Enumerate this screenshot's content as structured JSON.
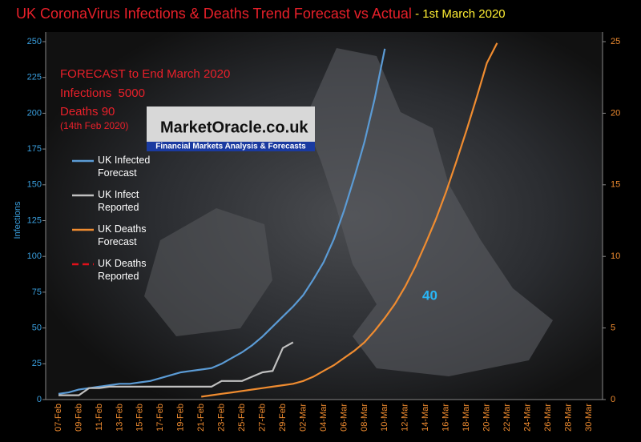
{
  "chart_data": {
    "type": "line",
    "title": "UK CoronaVirus Infections & Deaths Trend Forecast vs Actual",
    "subtitle": " - 1st March 2020",
    "ylabel": "Infections",
    "annotations": [
      "FORECAST to End March 2020",
      "Infections  5000",
      "Deaths 90",
      "(14th Feb 2020)",
      "40"
    ],
    "logo": {
      "name": "MarketOracle.co.uk",
      "tagline": "Financial Markets Analysis & Forecasts"
    },
    "categories": [
      "07-Feb",
      null,
      "09-Feb",
      null,
      "11-Feb",
      null,
      "13-Feb",
      null,
      "15-Feb",
      null,
      "17-Feb",
      null,
      "19-Feb",
      null,
      "21-Feb",
      null,
      "23-Feb",
      null,
      "25-Feb",
      null,
      "27-Feb",
      null,
      "29-Feb",
      null,
      "02-Mar",
      null,
      "04-Mar",
      null,
      "06-Mar",
      null,
      "08-Mar",
      null,
      "10-Mar",
      null,
      "12-Mar",
      null,
      "14-Mar",
      null,
      "16-Mar",
      null,
      "18-Mar",
      null,
      "20-Mar",
      null,
      "22-Mar",
      null,
      "24-Mar",
      null,
      "26-Mar",
      null,
      "28-Mar",
      null,
      "30-Mar"
    ],
    "series": [
      {
        "name": "UK Infected Forecast",
        "color": "#5b9bd5",
        "values": [
          4,
          5,
          7,
          8,
          9,
          10,
          11,
          11,
          12,
          13,
          15,
          17,
          19,
          20,
          21,
          22,
          25,
          29,
          33,
          38,
          44,
          51,
          58,
          65,
          73,
          84,
          96,
          112,
          132,
          155,
          180,
          210,
          245,
          null,
          null,
          null,
          null,
          null,
          null,
          null,
          null,
          null,
          null,
          null,
          null,
          null,
          null,
          null,
          null,
          null,
          null,
          null,
          null
        ]
      },
      {
        "name": "UK Infect Reported",
        "color": "#c0c0c0",
        "values": [
          3,
          3,
          3,
          8,
          8,
          9,
          9,
          9,
          9,
          9,
          9,
          9,
          9,
          9,
          9,
          9,
          13,
          13,
          13,
          16,
          19,
          20,
          36,
          40,
          null,
          null,
          null,
          null,
          null,
          null,
          null,
          null,
          null,
          null,
          null,
          null,
          null,
          null,
          null,
          null,
          null,
          null,
          null,
          null,
          null,
          null,
          null,
          null,
          null,
          null,
          null,
          null,
          null
        ]
      },
      {
        "name": "UK Deaths Forecast",
        "color": "#f08c30",
        "axis": "y2",
        "values": [
          null,
          null,
          null,
          null,
          null,
          null,
          null,
          null,
          null,
          null,
          null,
          null,
          null,
          null,
          0.2,
          0.3,
          0.4,
          0.5,
          0.6,
          0.7,
          0.8,
          0.9,
          1.0,
          1.1,
          1.3,
          1.6,
          2.0,
          2.4,
          2.9,
          3.4,
          4.0,
          4.8,
          5.7,
          6.7,
          7.9,
          9.3,
          10.9,
          12.6,
          14.5,
          16.6,
          18.8,
          21.1,
          23.5,
          24.9,
          null,
          null,
          null,
          null,
          null,
          null,
          null,
          null,
          null
        ]
      },
      {
        "name": "UK Deaths Reported",
        "color": "#e0101a",
        "axis": "y2",
        "dashed": true,
        "values": [
          null,
          null,
          null,
          null,
          null,
          null,
          null,
          null,
          null,
          null,
          null,
          null,
          null,
          null,
          null,
          null,
          null,
          null,
          null,
          null,
          null,
          null,
          null,
          null,
          null,
          null,
          null,
          null,
          null,
          null,
          null,
          null,
          null,
          null,
          null,
          null,
          null,
          null,
          null,
          null,
          null,
          null,
          null,
          null,
          null,
          null,
          null,
          null,
          null,
          null,
          null,
          null,
          null
        ]
      }
    ],
    "ylim": [
      0,
      250
    ],
    "yticks": [
      0,
      25,
      50,
      75,
      100,
      125,
      150,
      175,
      200,
      225,
      250
    ],
    "y2lim": [
      0,
      25
    ],
    "y2ticks": [
      0,
      5,
      10,
      15,
      20,
      25
    ]
  }
}
